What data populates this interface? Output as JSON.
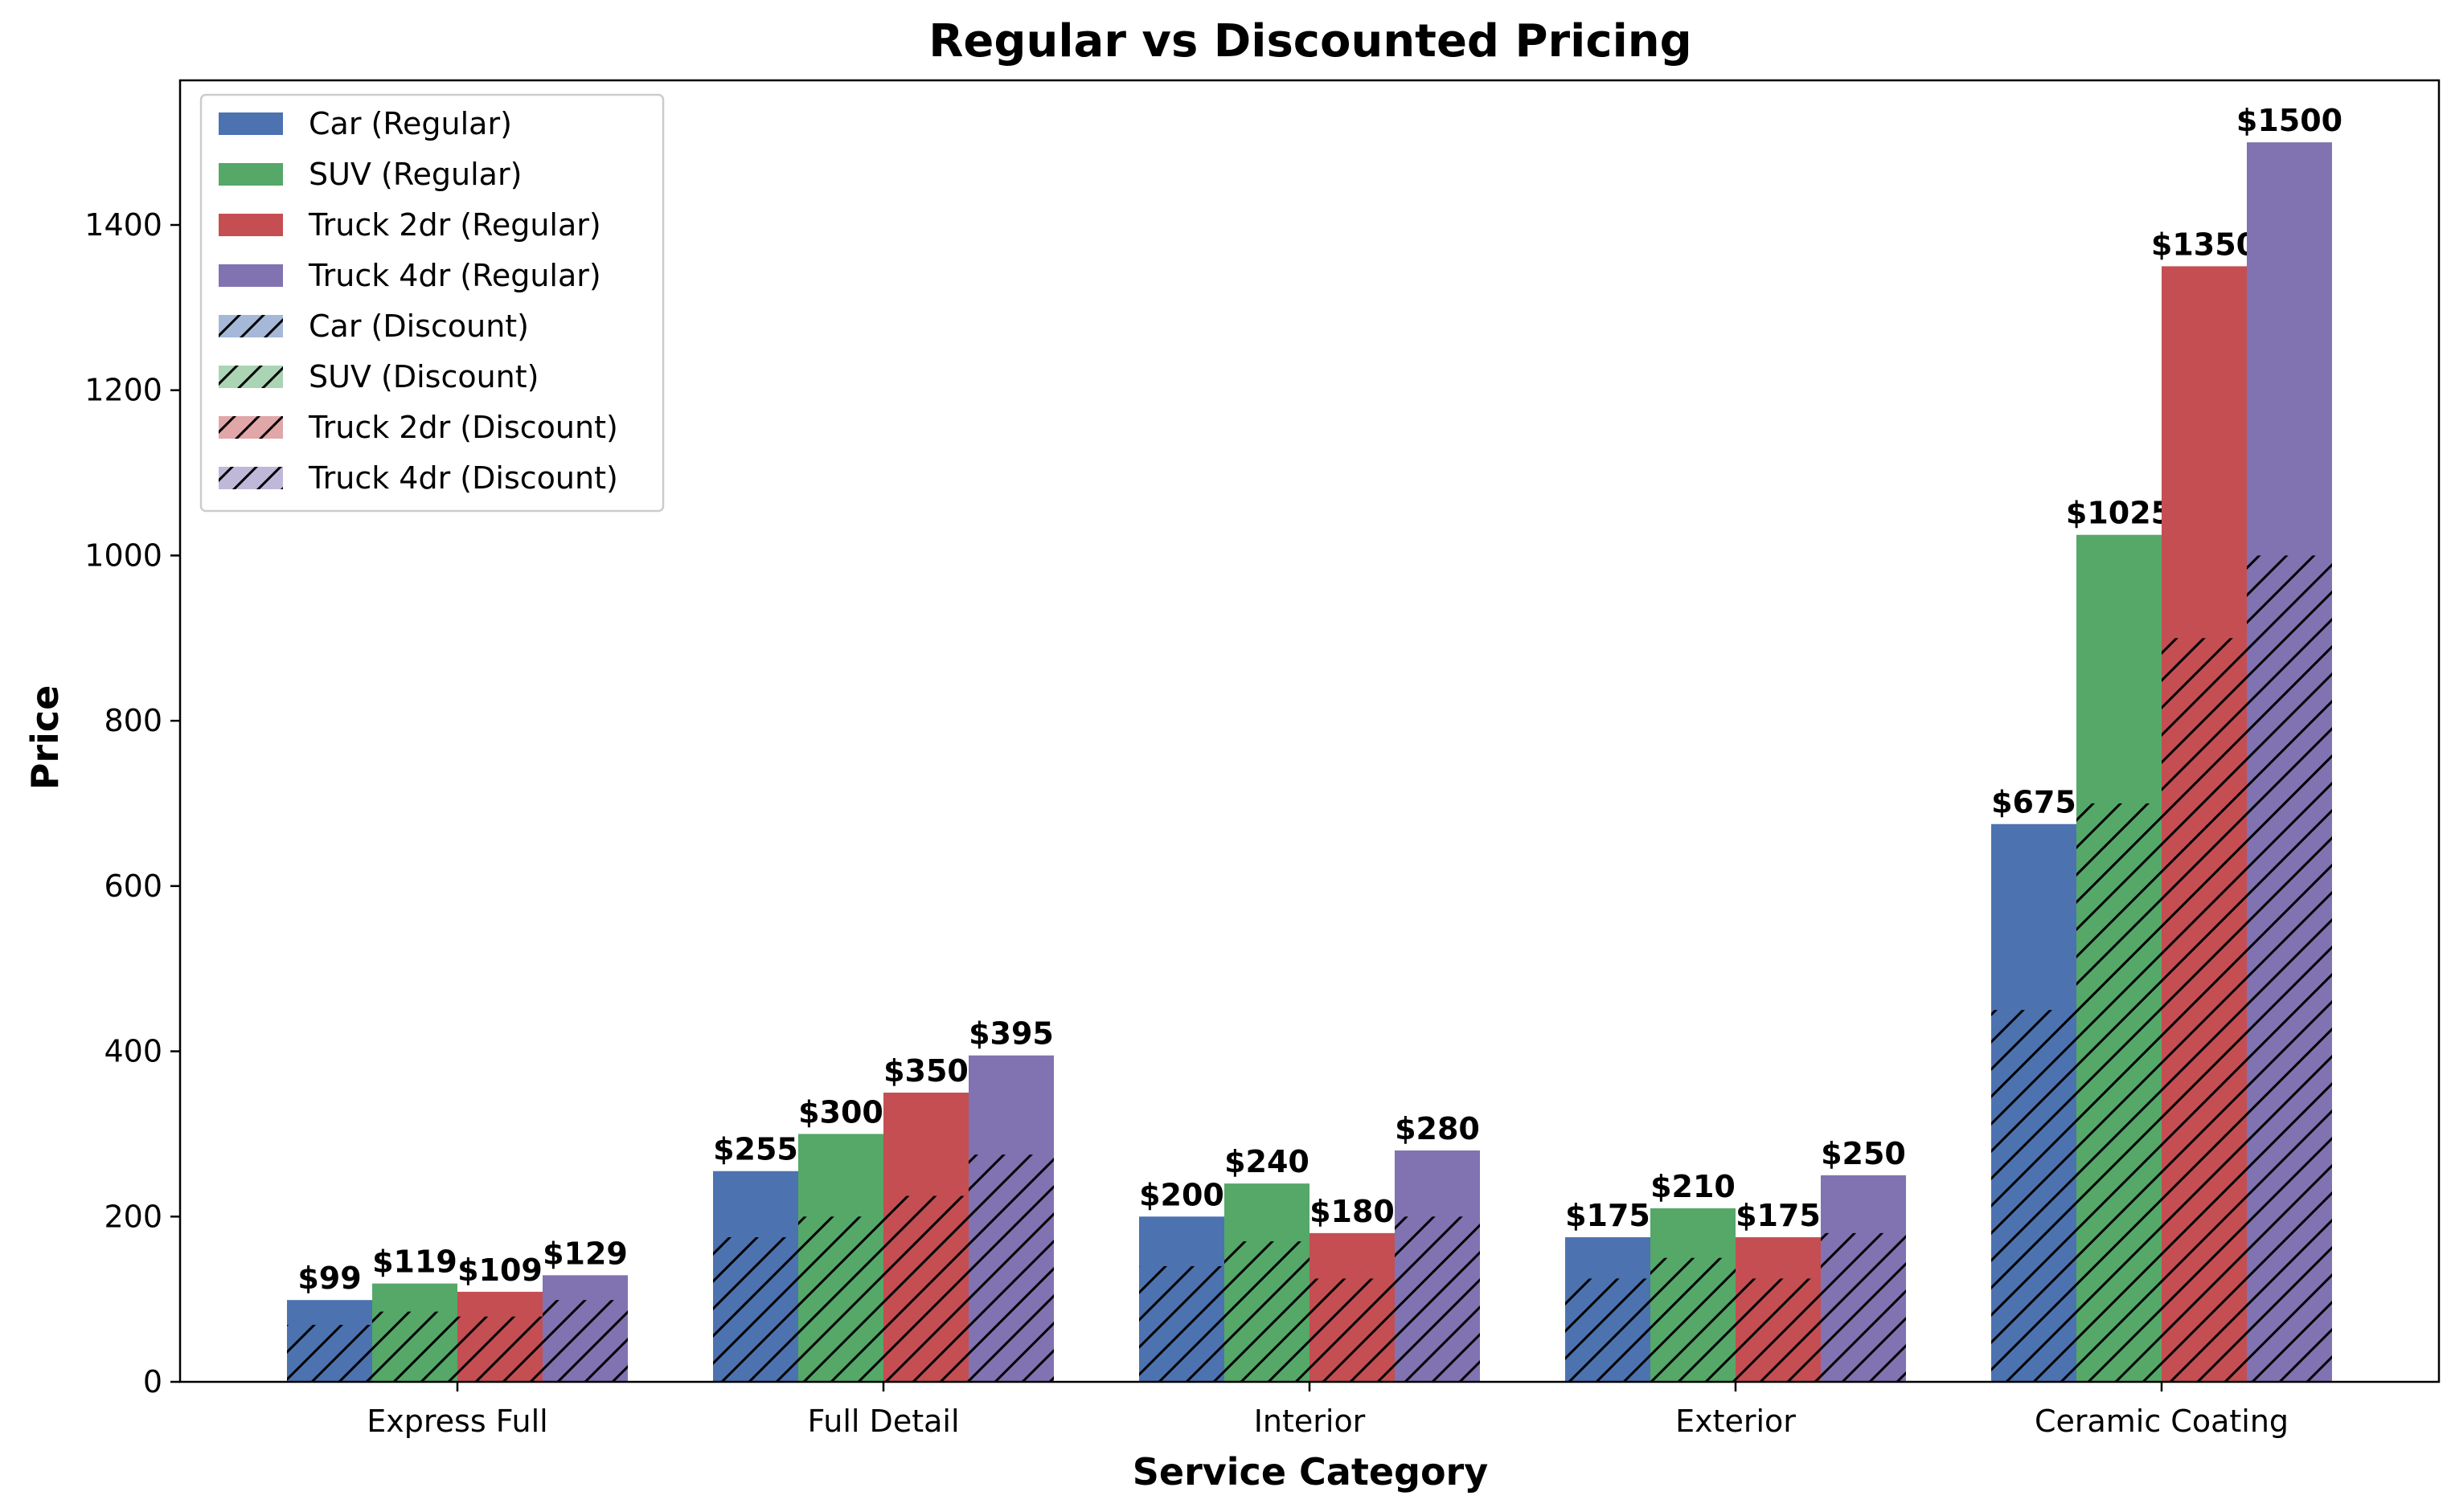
{
  "chart_data": {
    "type": "bar",
    "title": "Regular vs Discounted Pricing",
    "xlabel": "Service Category",
    "ylabel": "Price",
    "categories": [
      "Express Full",
      "Full Detail",
      "Interior",
      "Exterior",
      "Ceramic Coating"
    ],
    "ylim": [
      0,
      1575
    ],
    "yticks": [
      0,
      200,
      400,
      600,
      800,
      1000,
      1200,
      1400
    ],
    "grid": false,
    "legend_position": "top-left",
    "value_label_prefix": "$",
    "series": [
      {
        "name": "Car (Regular)",
        "values": [
          99,
          255,
          200,
          175,
          675
        ],
        "color": "#4c72b0"
      },
      {
        "name": "SUV (Regular)",
        "values": [
          119,
          300,
          240,
          210,
          1025
        ],
        "color": "#55a868"
      },
      {
        "name": "Truck 2dr (Regular)",
        "values": [
          109,
          350,
          180,
          175,
          1350
        ],
        "color": "#c44e52"
      },
      {
        "name": "Truck 4dr (Regular)",
        "values": [
          129,
          395,
          280,
          250,
          1500
        ],
        "color": "#8172b2"
      }
    ],
    "discount_series": [
      {
        "name": "Car (Discount)",
        "values": [
          69,
          175,
          140,
          125,
          450
        ],
        "color": "#a5b8d8"
      },
      {
        "name": "SUV (Discount)",
        "values": [
          85,
          200,
          170,
          150,
          700
        ],
        "color": "#aad4b3"
      },
      {
        "name": "Truck 2dr (Discount)",
        "values": [
          79,
          225,
          125,
          125,
          900
        ],
        "color": "#e1a6a8"
      },
      {
        "name": "Truck 4dr (Discount)",
        "values": [
          99,
          275,
          200,
          180,
          1000
        ],
        "color": "#c0b8d8"
      }
    ]
  }
}
